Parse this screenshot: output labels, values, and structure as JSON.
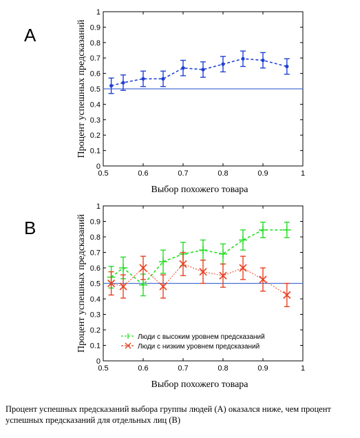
{
  "panels": {
    "a_letter": "A",
    "b_letter": "B"
  },
  "caption": "Процент успешных предсказаний выбора группы людей (А) оказался ниже, чем процент успешных предсказаний для отдельных лиц (В)",
  "chart_data": [
    {
      "type": "line",
      "panel": "A",
      "xlabel": "Выбор похожего товара",
      "ylabel": "Процент успешных предсказаний",
      "xlim": [
        0.5,
        1
      ],
      "ylim": [
        0,
        1
      ],
      "xticks": [
        "0.5",
        "0.6",
        "0.7",
        "0.8",
        "0.9",
        "1"
      ],
      "yticks": [
        "0",
        "0.1",
        "0.2",
        "0.3",
        "0.4",
        "0.5",
        "0.6",
        "0.7",
        "0.8",
        "0.9",
        "1"
      ],
      "reference_line": 0.5,
      "grid": false,
      "series": [
        {
          "color": "#1f3fd6",
          "marker": "dot",
          "x": [
            0.52,
            0.55,
            0.6,
            0.65,
            0.7,
            0.75,
            0.8,
            0.85,
            0.9,
            0.96
          ],
          "y": [
            0.52,
            0.54,
            0.565,
            0.565,
            0.635,
            0.625,
            0.66,
            0.695,
            0.685,
            0.645
          ],
          "err": [
            0.05,
            0.05,
            0.05,
            0.05,
            0.05,
            0.05,
            0.05,
            0.05,
            0.05,
            0.05
          ]
        }
      ]
    },
    {
      "type": "line",
      "panel": "B",
      "xlabel": "Выбор похожего товара",
      "ylabel": "Процент успешных предсказаний",
      "xlim": [
        0.5,
        1
      ],
      "ylim": [
        0,
        1
      ],
      "xticks": [
        "0.5",
        "0.6",
        "0.7",
        "0.8",
        "0.9",
        "1"
      ],
      "yticks": [
        "0",
        "0.1",
        "0.2",
        "0.3",
        "0.4",
        "0.5",
        "0.6",
        "0.7",
        "0.8",
        "0.9",
        "1"
      ],
      "reference_line": 0.5,
      "grid": false,
      "legend_position": "bottom-right",
      "series": [
        {
          "name": "Люди с высоким уровнем предсказаний",
          "color": "#22dd22",
          "marker": "plus",
          "x": [
            0.52,
            0.55,
            0.6,
            0.65,
            0.7,
            0.75,
            0.8,
            0.85,
            0.9,
            0.96
          ],
          "y": [
            0.54,
            0.6,
            0.49,
            0.64,
            0.69,
            0.715,
            0.69,
            0.78,
            0.845,
            0.845
          ],
          "err": [
            0.07,
            0.07,
            0.07,
            0.075,
            0.075,
            0.065,
            0.065,
            0.065,
            0.05,
            0.05
          ]
        },
        {
          "name": "Люди с низким уровнем предсказаний",
          "color": "#e84020",
          "marker": "x",
          "x": [
            0.52,
            0.55,
            0.6,
            0.65,
            0.7,
            0.75,
            0.8,
            0.85,
            0.9,
            0.96
          ],
          "y": [
            0.5,
            0.48,
            0.6,
            0.48,
            0.625,
            0.575,
            0.55,
            0.6,
            0.525,
            0.425
          ],
          "err": [
            0.075,
            0.075,
            0.075,
            0.075,
            0.075,
            0.075,
            0.075,
            0.075,
            0.075,
            0.075
          ]
        }
      ]
    }
  ]
}
